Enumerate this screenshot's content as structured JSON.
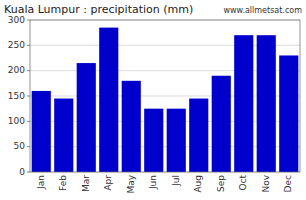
{
  "chart_data": {
    "type": "bar",
    "title": "Kuala Lumpur : precipitation (mm)",
    "annotation": "www.allmetsat.com",
    "categories": [
      "Jan",
      "Feb",
      "Mar",
      "Apr",
      "May",
      "Jun",
      "Jul",
      "Aug",
      "Sep",
      "Oct",
      "Nov",
      "Dec"
    ],
    "values": [
      160,
      145,
      215,
      285,
      180,
      125,
      125,
      145,
      190,
      270,
      270,
      230
    ],
    "color": "#0000cc",
    "ylim": [
      0,
      300
    ],
    "yticks": [
      0,
      50,
      100,
      150,
      200,
      250,
      300
    ],
    "grid": true
  }
}
